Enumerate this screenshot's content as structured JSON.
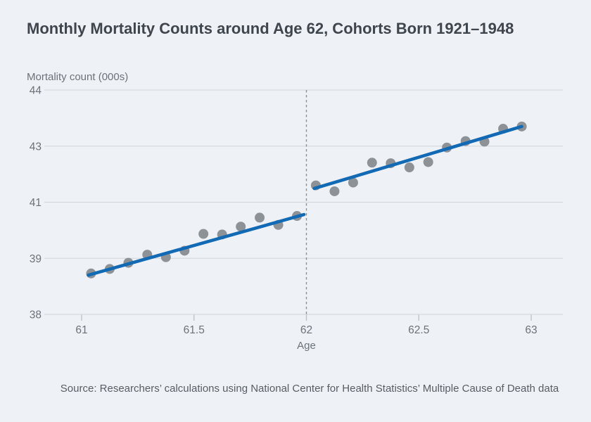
{
  "chart_data": {
    "type": "scatter",
    "title": "Monthly Mortality Counts around Age 62, Cohorts Born 1921–1948",
    "ylabel": "Mortality count (000s)",
    "xlabel": "Age",
    "source": "Source: Researchers’ calculations using National Center for Health Statistics’ Multiple Cause of Death data",
    "x_ticks": [
      61,
      61.5,
      62,
      62.5,
      63
    ],
    "y_ticks": [
      38,
      39,
      41,
      43,
      44
    ],
    "xlim": [
      60.83,
      63.14
    ],
    "reference_line_x": 62,
    "layout": {
      "grid": true,
      "legend": false,
      "y_gridlines_equally_spaced": true
    },
    "series": [
      {
        "name": "monthly-mortality-before-62",
        "type": "scatter",
        "points": [
          [
            61.042,
            38.73
          ],
          [
            61.125,
            38.81
          ],
          [
            61.208,
            38.92
          ],
          [
            61.292,
            39.13
          ],
          [
            61.375,
            39.04
          ],
          [
            61.458,
            39.27
          ],
          [
            61.542,
            39.87
          ],
          [
            61.625,
            39.85
          ],
          [
            61.708,
            40.13
          ],
          [
            61.792,
            40.45
          ],
          [
            61.875,
            40.19
          ],
          [
            61.958,
            40.51
          ]
        ]
      },
      {
        "name": "monthly-mortality-62-and-after",
        "type": "scatter",
        "points": [
          [
            62.042,
            41.6
          ],
          [
            62.125,
            41.39
          ],
          [
            62.208,
            41.7
          ],
          [
            62.292,
            42.41
          ],
          [
            62.375,
            42.39
          ],
          [
            62.458,
            42.24
          ],
          [
            62.542,
            42.43
          ],
          [
            62.625,
            42.95
          ],
          [
            62.708,
            43.09
          ],
          [
            62.792,
            43.08
          ],
          [
            62.875,
            43.31
          ],
          [
            62.958,
            43.35
          ]
        ]
      },
      {
        "name": "linear-fit-before-62",
        "type": "line",
        "points": [
          [
            61.03,
            38.7
          ],
          [
            61.989,
            40.56
          ]
        ]
      },
      {
        "name": "linear-fit-62-and-after",
        "type": "line",
        "points": [
          [
            62.035,
            41.49
          ],
          [
            62.958,
            43.35
          ]
        ]
      }
    ],
    "colors": {
      "background": "#eef2f7",
      "title_text": "#3f454c",
      "axis_text": "#6b7279",
      "gridline": "#d5dade",
      "tick_mark": "#b9c0c7",
      "dot": "#8d9297",
      "fit_line": "#1269b4",
      "reference_line": "#8b9196",
      "source_text": "#575d64"
    }
  }
}
